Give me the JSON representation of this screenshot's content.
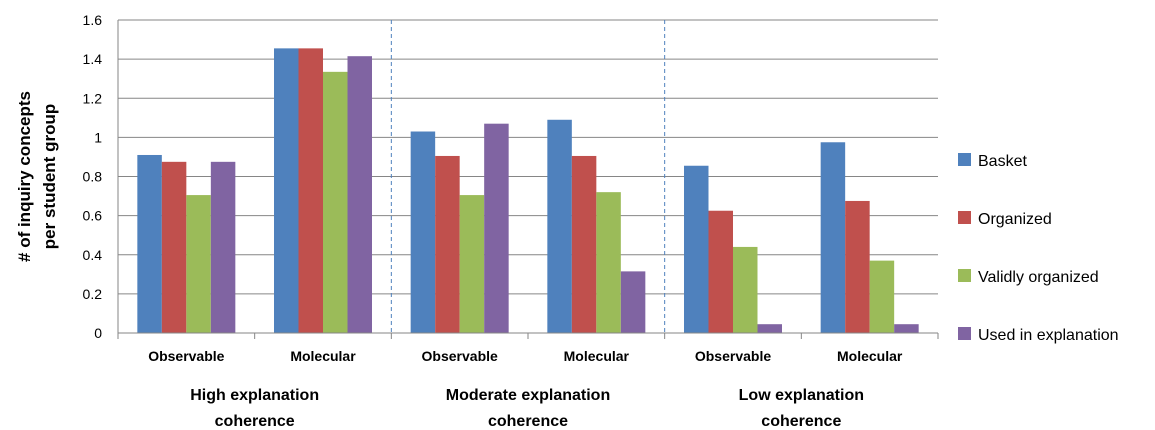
{
  "chart_data": {
    "type": "bar",
    "title": "",
    "ylabel_lines": [
      "# of inquiry concepts",
      "per student group"
    ],
    "ylim": [
      0,
      1.6
    ],
    "yticks": [
      "0",
      "0.2",
      "0.4",
      "0.6",
      "0.8",
      "1",
      "1.2",
      "1.4",
      "1.6"
    ],
    "grid": true,
    "legend_position": "right",
    "categories": [
      "Observable",
      "Molecular",
      "Observable",
      "Molecular",
      "Observable",
      "Molecular"
    ],
    "groups": [
      {
        "label_lines": [
          "High explanation",
          "coherence"
        ],
        "categories": [
          0,
          1
        ]
      },
      {
        "label_lines": [
          "Moderate explanation",
          "coherence"
        ],
        "categories": [
          2,
          3
        ]
      },
      {
        "label_lines": [
          "Low explanation",
          "coherence"
        ],
        "categories": [
          4,
          5
        ]
      }
    ],
    "series": [
      {
        "name": "Basket",
        "color": "#4F81BD",
        "values": [
          0.91,
          1.455,
          1.03,
          1.09,
          0.855,
          0.975
        ]
      },
      {
        "name": "Organized",
        "color": "#C0504D",
        "values": [
          0.875,
          1.455,
          0.905,
          0.905,
          0.625,
          0.675
        ]
      },
      {
        "name": "Validly organized",
        "color": "#9BBB59",
        "values": [
          0.705,
          1.335,
          0.705,
          0.72,
          0.44,
          0.37
        ]
      },
      {
        "name": "Used in explanation",
        "color": "#8064A2",
        "values": [
          0.875,
          1.415,
          1.07,
          0.315,
          0.045,
          0.045
        ]
      }
    ]
  }
}
